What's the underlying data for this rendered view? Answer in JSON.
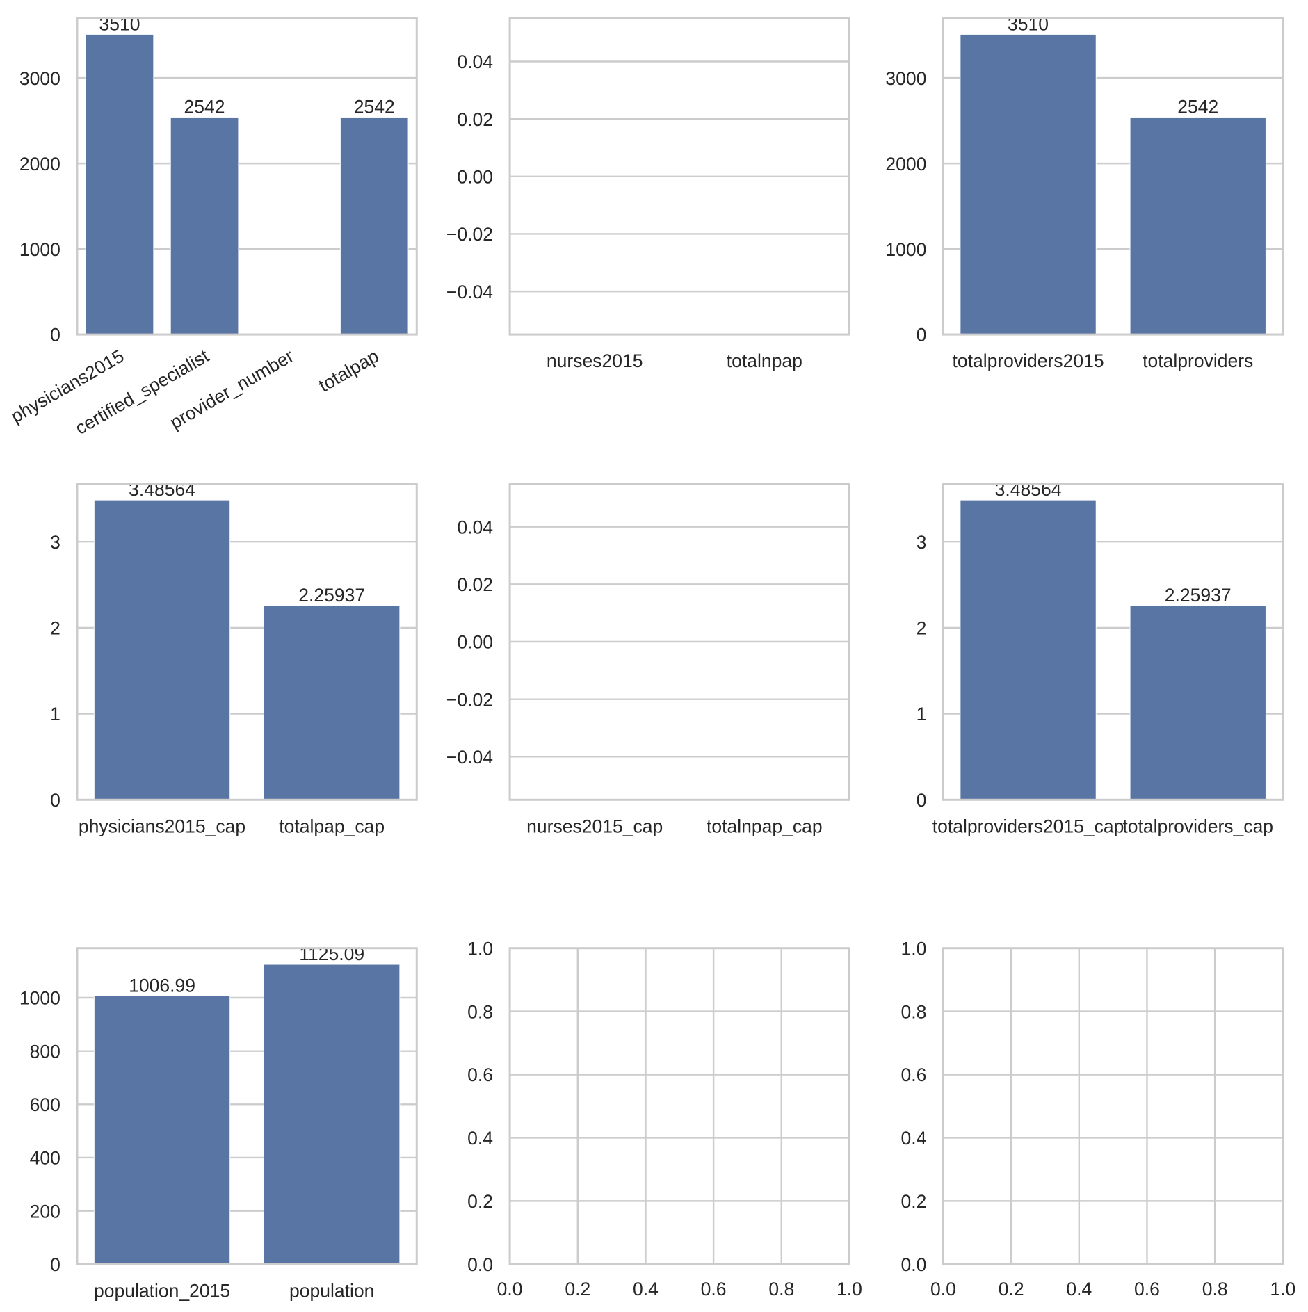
{
  "chart_data": [
    {
      "type": "bar",
      "categories": [
        "physicians2015",
        "certified_specialist",
        "provider_number",
        "totalpap"
      ],
      "values": [
        3510,
        2542,
        null,
        2542
      ],
      "bar_labels": [
        "3510",
        "2542",
        null,
        "2542"
      ],
      "ylim": [
        0,
        3696
      ],
      "yticks": [
        0,
        1000,
        2000,
        3000
      ],
      "ytick_labels": [
        "0",
        "1000",
        "2000",
        "3000"
      ],
      "xtick_rotation": 30,
      "color": "#5975a4",
      "grid": true
    },
    {
      "type": "bar",
      "categories": [
        "nurses2015",
        "totalnpap"
      ],
      "values": [
        null,
        null
      ],
      "bar_labels": [
        null,
        null
      ],
      "ylim": [
        -0.055,
        0.055
      ],
      "yticks": [
        -0.04,
        -0.02,
        0.0,
        0.02,
        0.04
      ],
      "ytick_labels": [
        "−0.04",
        "−0.02",
        "0.00",
        "0.02",
        "0.04"
      ],
      "color": "#5975a4",
      "grid": true
    },
    {
      "type": "bar",
      "categories": [
        "totalproviders2015",
        "totalproviders"
      ],
      "values": [
        3510,
        2542
      ],
      "bar_labels": [
        "3510",
        "2542"
      ],
      "ylim": [
        0,
        3696
      ],
      "yticks": [
        0,
        1000,
        2000,
        3000
      ],
      "ytick_labels": [
        "0",
        "1000",
        "2000",
        "3000"
      ],
      "color": "#5975a4",
      "grid": true
    },
    {
      "type": "bar",
      "categories": [
        "physicians2015_cap",
        "totalpap_cap"
      ],
      "values": [
        3.48564,
        2.25937
      ],
      "bar_labels": [
        "3.48564",
        "2.25937"
      ],
      "ylim": [
        0,
        3.675
      ],
      "yticks": [
        0,
        1,
        2,
        3
      ],
      "ytick_labels": [
        "0",
        "1",
        "2",
        "3"
      ],
      "color": "#5975a4",
      "grid": true
    },
    {
      "type": "bar",
      "categories": [
        "nurses2015_cap",
        "totalnpap_cap"
      ],
      "values": [
        null,
        null
      ],
      "bar_labels": [
        null,
        null
      ],
      "ylim": [
        -0.055,
        0.055
      ],
      "yticks": [
        -0.04,
        -0.02,
        0.0,
        0.02,
        0.04
      ],
      "ytick_labels": [
        "−0.04",
        "−0.02",
        "0.00",
        "0.02",
        "0.04"
      ],
      "color": "#5975a4",
      "grid": true
    },
    {
      "type": "bar",
      "categories": [
        "totalproviders2015_cap",
        "totalproviders_cap"
      ],
      "values": [
        3.48564,
        2.25937
      ],
      "bar_labels": [
        "3.48564",
        "2.25937"
      ],
      "ylim": [
        0,
        3.675
      ],
      "yticks": [
        0,
        1,
        2,
        3
      ],
      "ytick_labels": [
        "0",
        "1",
        "2",
        "3"
      ],
      "color": "#5975a4",
      "grid": true
    },
    {
      "type": "bar",
      "categories": [
        "population_2015",
        "population"
      ],
      "values": [
        1006.99,
        1125.09
      ],
      "bar_labels": [
        "1006.99",
        "1125.09"
      ],
      "ylim": [
        0,
        1186
      ],
      "yticks": [
        0,
        200,
        400,
        600,
        800,
        1000
      ],
      "ytick_labels": [
        "0",
        "200",
        "400",
        "600",
        "800",
        "1000"
      ],
      "color": "#5975a4",
      "grid": true
    },
    {
      "type": "empty",
      "xlim": [
        0,
        1
      ],
      "ylim": [
        0,
        1
      ],
      "xticks": [
        0,
        0.2,
        0.4,
        0.6,
        0.8,
        1.0
      ],
      "xtick_labels": [
        "0.0",
        "0.2",
        "0.4",
        "0.6",
        "0.8",
        "1.0"
      ],
      "yticks": [
        0,
        0.2,
        0.4,
        0.6,
        0.8,
        1.0
      ],
      "ytick_labels": [
        "0.0",
        "0.2",
        "0.4",
        "0.6",
        "0.8",
        "1.0"
      ],
      "grid": true
    },
    {
      "type": "empty",
      "xlim": [
        0,
        1
      ],
      "ylim": [
        0,
        1
      ],
      "xticks": [
        0,
        0.2,
        0.4,
        0.6,
        0.8,
        1.0
      ],
      "xtick_labels": [
        "0.0",
        "0.2",
        "0.4",
        "0.6",
        "0.8",
        "1.0"
      ],
      "yticks": [
        0,
        0.2,
        0.4,
        0.6,
        0.8,
        1.0
      ],
      "ytick_labels": [
        "0.0",
        "0.2",
        "0.4",
        "0.6",
        "0.8",
        "1.0"
      ],
      "grid": true
    }
  ]
}
